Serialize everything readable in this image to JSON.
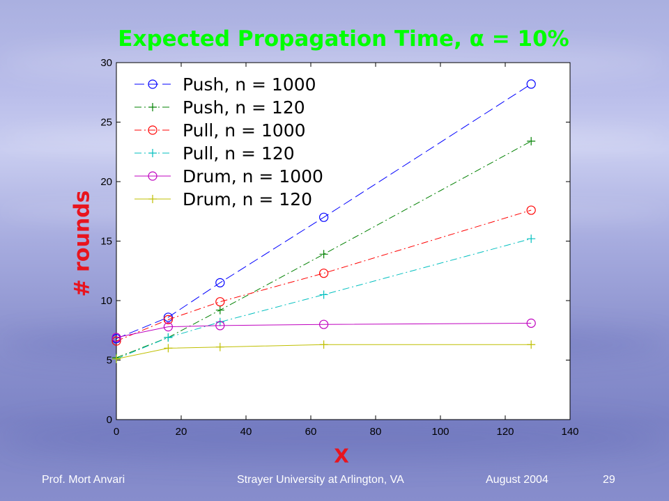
{
  "slide": {
    "title": "Expected Propagation Time, α = 10%",
    "footer_author": "Prof. Mort Anvari",
    "footer_venue": "Strayer University at Arlington, VA",
    "footer_date": "August 2004",
    "page_number": "29"
  },
  "chart_data": {
    "type": "line",
    "title": "Expected Propagation Time, α = 10%",
    "xlabel": "X",
    "ylabel": "# rounds",
    "xlim": [
      0,
      140
    ],
    "ylim": [
      0,
      30
    ],
    "x_ticks": [
      0,
      20,
      40,
      60,
      80,
      100,
      120,
      140
    ],
    "y_ticks": [
      0,
      5,
      10,
      15,
      20,
      25,
      30
    ],
    "grid": false,
    "legend_position": "top-left",
    "x": [
      0,
      16,
      32,
      64,
      128
    ],
    "series": [
      {
        "name": "Push, n = 1000",
        "color": "#0000ff",
        "marker": "circle",
        "dash": "dashed",
        "values": [
          6.8,
          8.6,
          11.5,
          17.0,
          28.2
        ]
      },
      {
        "name": "Push, n = 120",
        "color": "#008000",
        "marker": "plus",
        "dash": "dashdot",
        "values": [
          5.2,
          6.9,
          9.2,
          13.9,
          23.4
        ]
      },
      {
        "name": "Pull, n = 1000",
        "color": "#ff0000",
        "marker": "circle",
        "dash": "dashdot",
        "values": [
          6.6,
          8.4,
          9.9,
          12.3,
          17.6
        ]
      },
      {
        "name": "Pull, n = 120",
        "color": "#00bfbf",
        "marker": "plus",
        "dash": "dashdot",
        "values": [
          5.1,
          6.9,
          8.2,
          10.5,
          15.2
        ]
      },
      {
        "name": "Drum, n = 1000",
        "color": "#bf00bf",
        "marker": "circle",
        "dash": "solid",
        "values": [
          6.9,
          7.8,
          7.9,
          8.0,
          8.1
        ]
      },
      {
        "name": "Drum, n = 120",
        "color": "#bfbf00",
        "marker": "plus",
        "dash": "solid",
        "values": [
          5.1,
          6.0,
          6.1,
          6.3,
          6.3
        ]
      }
    ]
  }
}
